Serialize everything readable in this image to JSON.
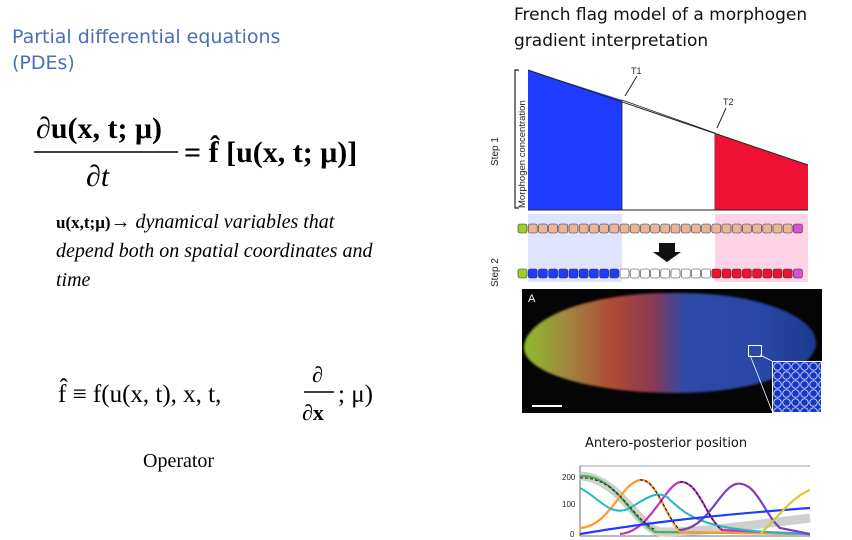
{
  "left_panel": {
    "title": "Partial differential equations (PDEs)",
    "equation1": {
      "numerator": "∂u(x, t; μ)",
      "denominator": "∂t",
      "rhs": "= f̂ [u(x, t; μ)]"
    },
    "description": {
      "symbol": "u(x,t;μ)",
      "arrow": "→",
      "text": "dynamical variables that depend both on spatial coordinates and time"
    },
    "equation2": {
      "lhs": "f̂ ≡ f(u(x, t), x, t,",
      "partial_num": "∂",
      "partial_den": "∂x",
      "tail": "; μ)"
    },
    "operator_label": "Operator"
  },
  "right_panel": {
    "title": "French flag model of a morphogen gradient interpretation",
    "gradient_diagram": {
      "y_axis_label": "Morphogen concentration",
      "step1_label": "Step 1",
      "step2_label": "Step 2",
      "threshold1": "T1",
      "threshold2": "T2",
      "colors": {
        "blue": "#1f3bff",
        "white": "#ffffff",
        "red": "#ee1133",
        "green": "#9bd12b",
        "magenta": "#d94fd6",
        "peach": "#e8b49a"
      }
    },
    "embryo_panel_label": "A",
    "position_chart": {
      "title": "Antero-posterior position",
      "y_ticks": [
        "200",
        "100",
        "0"
      ]
    }
  }
}
